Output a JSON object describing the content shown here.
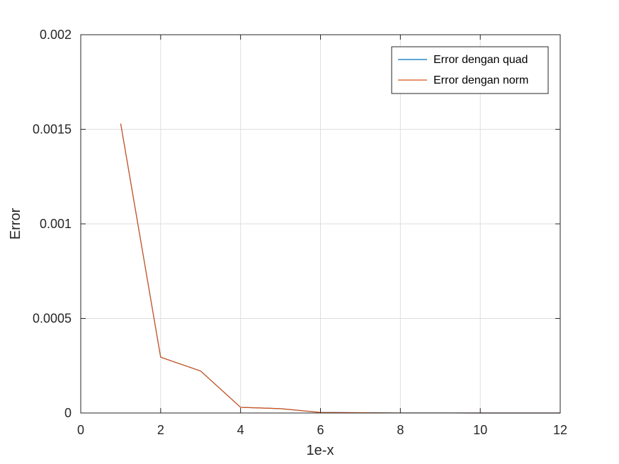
{
  "chart_data": {
    "type": "line",
    "xlabel": "1e-x",
    "ylabel": "Error",
    "xlim": [
      0,
      12
    ],
    "ylim": [
      0,
      0.002
    ],
    "x_ticks": [
      "0",
      "2",
      "4",
      "6",
      "8",
      "10",
      "12"
    ],
    "y_ticks": [
      "0",
      "0.0005",
      "0.001",
      "0.0015",
      "0.002"
    ],
    "grid": true,
    "legend_position": "top-right",
    "series": [
      {
        "name": "Error dengan quad",
        "color": "#0072bd",
        "x": [
          1,
          2,
          3,
          4,
          5,
          6,
          7,
          8,
          9,
          10,
          11,
          12
        ],
        "y": [
          0.00153,
          0.000295,
          0.000222,
          3e-05,
          2.3e-05,
          3e-06,
          1.5e-06,
          3e-07,
          2e-07,
          3e-08,
          2e-08,
          3e-09
        ]
      },
      {
        "name": "Error dengan norm",
        "color": "#d95319",
        "x": [
          1,
          2,
          3,
          4,
          5,
          6,
          7,
          8,
          9,
          10,
          11,
          12
        ],
        "y": [
          0.00153,
          0.000295,
          0.000222,
          3e-05,
          2.3e-05,
          3e-06,
          1.5e-06,
          3e-07,
          2e-07,
          3e-08,
          2e-08,
          3e-09
        ]
      }
    ]
  }
}
